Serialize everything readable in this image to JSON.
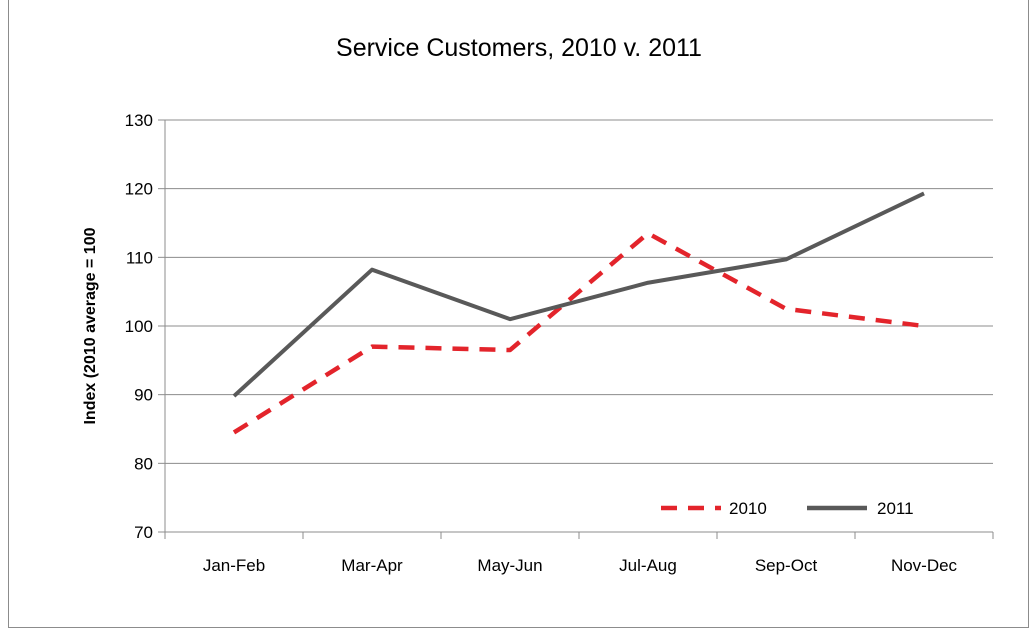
{
  "chart_data": {
    "type": "line",
    "title": "Service Customers, 2010 v. 2011",
    "xlabel": "",
    "ylabel": "Index (2010 average = 100",
    "categories": [
      "Jan-Feb",
      "Mar-Apr",
      "May-Jun",
      "Jul-Aug",
      "Sep-Oct",
      "Nov-Dec"
    ],
    "ylim": [
      70,
      130
    ],
    "yticks": [
      70,
      80,
      90,
      100,
      110,
      120,
      130
    ],
    "grid": true,
    "legend": "bottom-right",
    "series": [
      {
        "name": "2010",
        "values": [
          84.5,
          97,
          96.5,
          113.5,
          102.5,
          100
        ],
        "color": "#e3242b",
        "style": "dashed"
      },
      {
        "name": "2011",
        "values": [
          89.8,
          108.2,
          101,
          106.3,
          109.7,
          119.3
        ],
        "color": "#595959",
        "style": "solid"
      }
    ]
  }
}
